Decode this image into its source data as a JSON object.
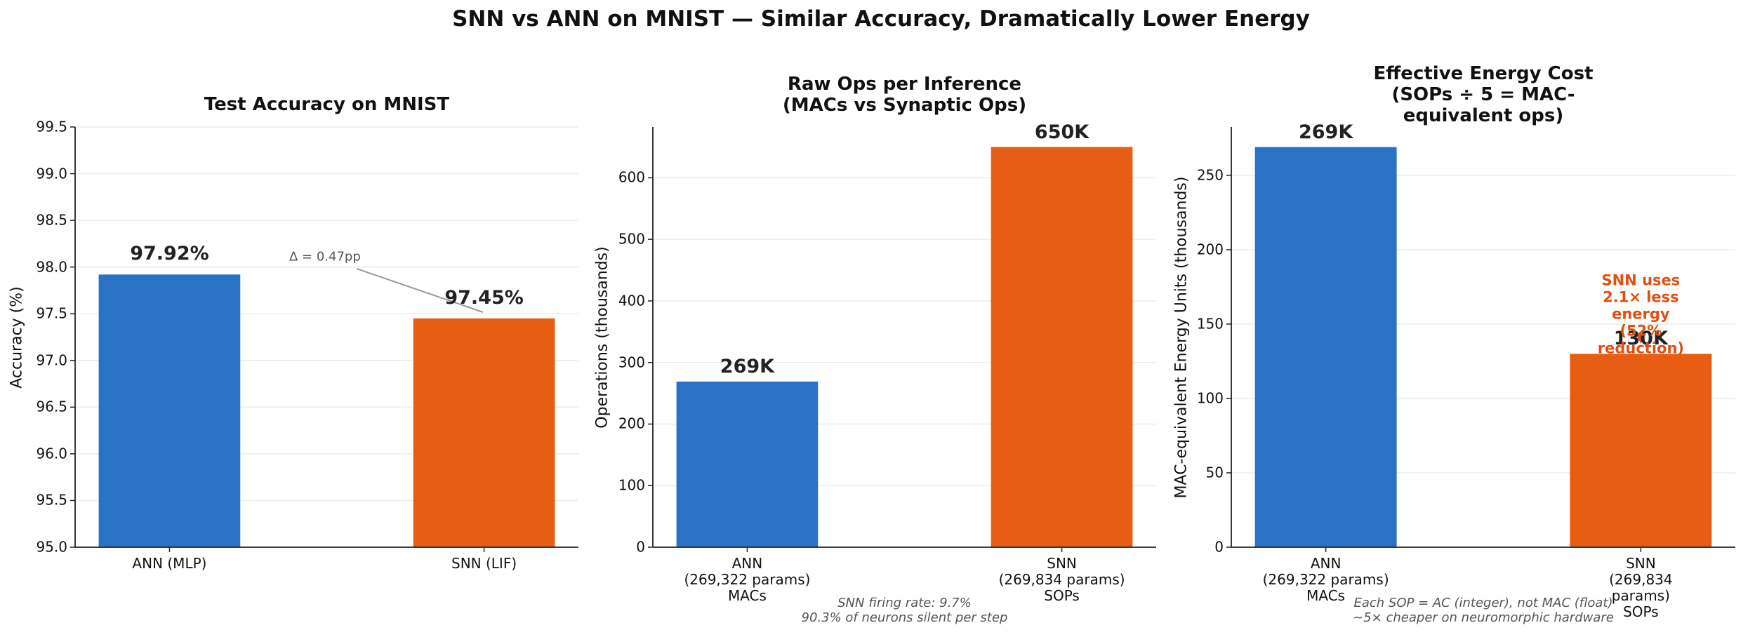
{
  "title": "SNN vs ANN on MNIST — Similar Accuracy, Dramatically Lower Energy",
  "chart_data": [
    {
      "type": "bar",
      "title": "Test Accuracy on MNIST",
      "y_label": "Accuracy (%)",
      "categories": [
        "ANN (MLP)",
        "SNN (LIF)"
      ],
      "series": [
        {
          "name": "Accuracy",
          "colors": [
            "#2a72c6",
            "#e85d14"
          ],
          "values": [
            97.92,
            97.45
          ],
          "value_labels": [
            "97.92%",
            "97.45%"
          ]
        }
      ],
      "ylim": [
        95.0,
        99.5
      ],
      "yticks": [
        {
          "value": 95,
          "label": "95.0"
        },
        {
          "value": 95.5,
          "label": "95.5"
        },
        {
          "value": 96,
          "label": "96.0"
        },
        {
          "value": 96.5,
          "label": "96.5"
        },
        {
          "value": 97,
          "label": "97.0"
        },
        {
          "value": 97.5,
          "label": "97.5"
        },
        {
          "value": 98,
          "label": "98.0"
        },
        {
          "value": 98.5,
          "label": "98.5"
        },
        {
          "value": 99,
          "label": "99.0"
        },
        {
          "value": 99.5,
          "label": "99.5"
        }
      ],
      "grid": true,
      "annotation": "Δ = 0.47pp",
      "annotation_color": "#555555"
    },
    {
      "type": "bar",
      "title": "Raw Ops per Inference\n(MACs vs Synaptic Ops)",
      "y_label": "Operations (thousands)",
      "categories": [
        "ANN\n(269,322 params)\nMACs",
        "SNN\n(269,834 params)\nSOPs"
      ],
      "series": [
        {
          "name": "Operations",
          "colors": [
            "#2a72c6",
            "#e85d14"
          ],
          "values": [
            269,
            650
          ],
          "value_labels": [
            "269K",
            "650K"
          ]
        }
      ],
      "ylim": [
        0,
        682.5
      ],
      "yticks": [
        0,
        100,
        200,
        300,
        400,
        500,
        600
      ],
      "grid": true,
      "note": "SNN firing rate: 9.7%\n90.3% of neurons silent per step"
    },
    {
      "type": "bar",
      "title": "Effective Energy Cost\n(SOPs ÷ 5 = MAC-equivalent ops)",
      "y_label": "MAC-equivalent Energy Units (thousands)",
      "categories": [
        "ANN\n(269,322 params)\nMACs",
        "SNN\n(269,834 params)\nSOPs"
      ],
      "series": [
        {
          "name": "Energy",
          "colors": [
            "#2a72c6",
            "#e85d14"
          ],
          "values": [
            269,
            130
          ],
          "value_labels": [
            "269K",
            "130K"
          ]
        }
      ],
      "ylim": [
        0,
        282.5
      ],
      "yticks": [
        0,
        50,
        100,
        150,
        200,
        250
      ],
      "grid": true,
      "annotation": "SNN uses 2.1× less energy\n(52% reduction)",
      "annotation_color": "#e05010",
      "note": "Each SOP = AC (integer), not MAC (float)\n~5× cheaper on neuromorphic hardware"
    }
  ]
}
